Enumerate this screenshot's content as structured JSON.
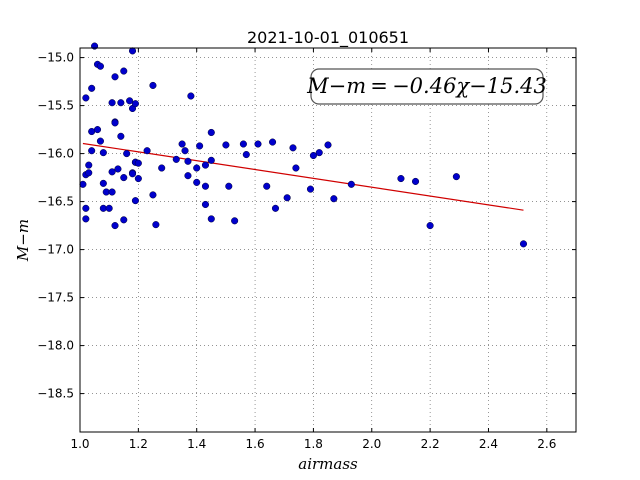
{
  "chart_data": {
    "type": "scatter",
    "title": "2021-10-01_010651",
    "xlabel": "airmass",
    "ylabel": "M−m",
    "xlim": [
      1.0,
      2.7
    ],
    "ylim": [
      -14.9,
      -18.9
    ],
    "y_inverted": true,
    "grid": true,
    "xticks": [
      "1.0",
      "1.2",
      "1.4",
      "1.6",
      "1.8",
      "2.0",
      "2.2",
      "2.4",
      "2.6"
    ],
    "yticks": [
      "−15.0",
      "−15.5",
      "−16.0",
      "−16.5",
      "−17.0",
      "−17.5",
      "−18.0",
      "−18.5"
    ],
    "annotation": "M−m = −0.46χ−15.43",
    "fit": {
      "slope": -0.46,
      "intercept": -15.43,
      "x_range": [
        1.01,
        2.52
      ],
      "color": "#d00000"
    },
    "marker_color": "#0000cc",
    "series": [
      {
        "points": [
          [
            1.01,
            -16.32
          ],
          [
            1.02,
            -16.57
          ],
          [
            1.02,
            -16.68
          ],
          [
            1.02,
            -15.42
          ],
          [
            1.02,
            -16.22
          ],
          [
            1.03,
            -16.2
          ],
          [
            1.03,
            -16.12
          ],
          [
            1.04,
            -15.77
          ],
          [
            1.04,
            -15.32
          ],
          [
            1.04,
            -15.97
          ],
          [
            1.05,
            -14.88
          ],
          [
            1.06,
            -15.75
          ],
          [
            1.06,
            -15.07
          ],
          [
            1.07,
            -15.09
          ],
          [
            1.07,
            -15.87
          ],
          [
            1.08,
            -15.99
          ],
          [
            1.08,
            -16.31
          ],
          [
            1.08,
            -16.57
          ],
          [
            1.09,
            -16.4
          ],
          [
            1.1,
            -16.57
          ],
          [
            1.11,
            -16.4
          ],
          [
            1.11,
            -16.19
          ],
          [
            1.11,
            -15.47
          ],
          [
            1.12,
            -15.2
          ],
          [
            1.12,
            -15.67
          ],
          [
            1.12,
            -16.75
          ],
          [
            1.12,
            -15.68
          ],
          [
            1.13,
            -16.16
          ],
          [
            1.14,
            -15.82
          ],
          [
            1.14,
            -15.47
          ],
          [
            1.15,
            -15.14
          ],
          [
            1.15,
            -16.69
          ],
          [
            1.15,
            -16.25
          ],
          [
            1.16,
            -16.0
          ],
          [
            1.17,
            -15.45
          ],
          [
            1.18,
            -14.93
          ],
          [
            1.18,
            -16.2
          ],
          [
            1.18,
            -16.21
          ],
          [
            1.18,
            -15.53
          ],
          [
            1.19,
            -15.48
          ],
          [
            1.19,
            -16.09
          ],
          [
            1.19,
            -16.09
          ],
          [
            1.19,
            -16.49
          ],
          [
            1.2,
            -16.1
          ],
          [
            1.2,
            -16.26
          ],
          [
            1.23,
            -15.97
          ],
          [
            1.25,
            -16.43
          ],
          [
            1.25,
            -15.29
          ],
          [
            1.26,
            -16.74
          ],
          [
            1.28,
            -16.15
          ],
          [
            1.33,
            -16.06
          ],
          [
            1.35,
            -15.9
          ],
          [
            1.36,
            -15.97
          ],
          [
            1.37,
            -16.23
          ],
          [
            1.37,
            -16.08
          ],
          [
            1.38,
            -15.4
          ],
          [
            1.4,
            -16.3
          ],
          [
            1.4,
            -16.15
          ],
          [
            1.41,
            -15.92
          ],
          [
            1.43,
            -16.12
          ],
          [
            1.43,
            -16.34
          ],
          [
            1.43,
            -16.53
          ],
          [
            1.45,
            -16.07
          ],
          [
            1.45,
            -15.78
          ],
          [
            1.45,
            -16.68
          ],
          [
            1.5,
            -15.91
          ],
          [
            1.51,
            -16.34
          ],
          [
            1.53,
            -16.7
          ],
          [
            1.56,
            -15.9
          ],
          [
            1.57,
            -16.01
          ],
          [
            1.61,
            -15.9
          ],
          [
            1.64,
            -16.34
          ],
          [
            1.66,
            -15.88
          ],
          [
            1.67,
            -16.57
          ],
          [
            1.71,
            -16.46
          ],
          [
            1.73,
            -15.94
          ],
          [
            1.74,
            -16.15
          ],
          [
            1.79,
            -16.37
          ],
          [
            1.8,
            -16.02
          ],
          [
            1.82,
            -15.99
          ],
          [
            1.85,
            -15.91
          ],
          [
            1.87,
            -16.47
          ],
          [
            1.93,
            -16.32
          ],
          [
            2.1,
            -16.26
          ],
          [
            2.15,
            -16.29
          ],
          [
            2.2,
            -16.75
          ],
          [
            2.29,
            -16.24
          ],
          [
            2.52,
            -16.94
          ]
        ]
      }
    ]
  }
}
